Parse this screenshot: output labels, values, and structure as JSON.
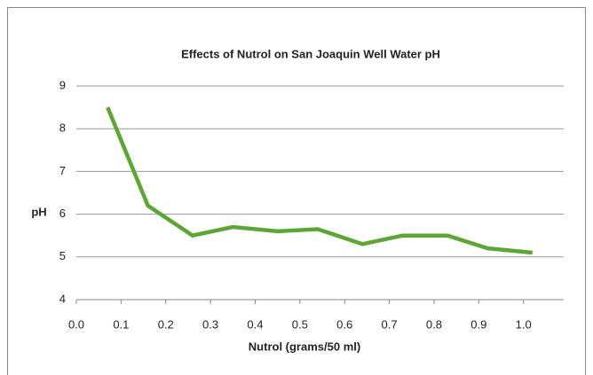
{
  "chart_data": {
    "type": "line",
    "title": "Effects of Nutrol on San Joaquin Well Water pH",
    "x_label": "Nutrol (grams/50 ml)",
    "y_label": "pH",
    "x": [
      0.07,
      0.16,
      0.26,
      0.35,
      0.45,
      0.54,
      0.64,
      0.73,
      0.83,
      0.92,
      1.02
    ],
    "series": [
      {
        "name": "pH",
        "color": "#5aa832",
        "values": [
          8.5,
          6.2,
          5.5,
          5.7,
          5.6,
          5.65,
          5.3,
          5.5,
          5.5,
          5.2,
          5.1
        ]
      }
    ],
    "xlim": [
      0,
      1.09
    ],
    "xticks": [
      {
        "value": 0,
        "label": "0.0"
      },
      0.1,
      0.2,
      0.3,
      0.4,
      0.5,
      0.6,
      0.7,
      0.8,
      0.9,
      {
        "value": 1,
        "label": "1.0"
      }
    ],
    "ylim": [
      4,
      9
    ],
    "yticks": [
      4,
      5,
      6,
      7,
      8,
      9
    ],
    "grid": true
  }
}
